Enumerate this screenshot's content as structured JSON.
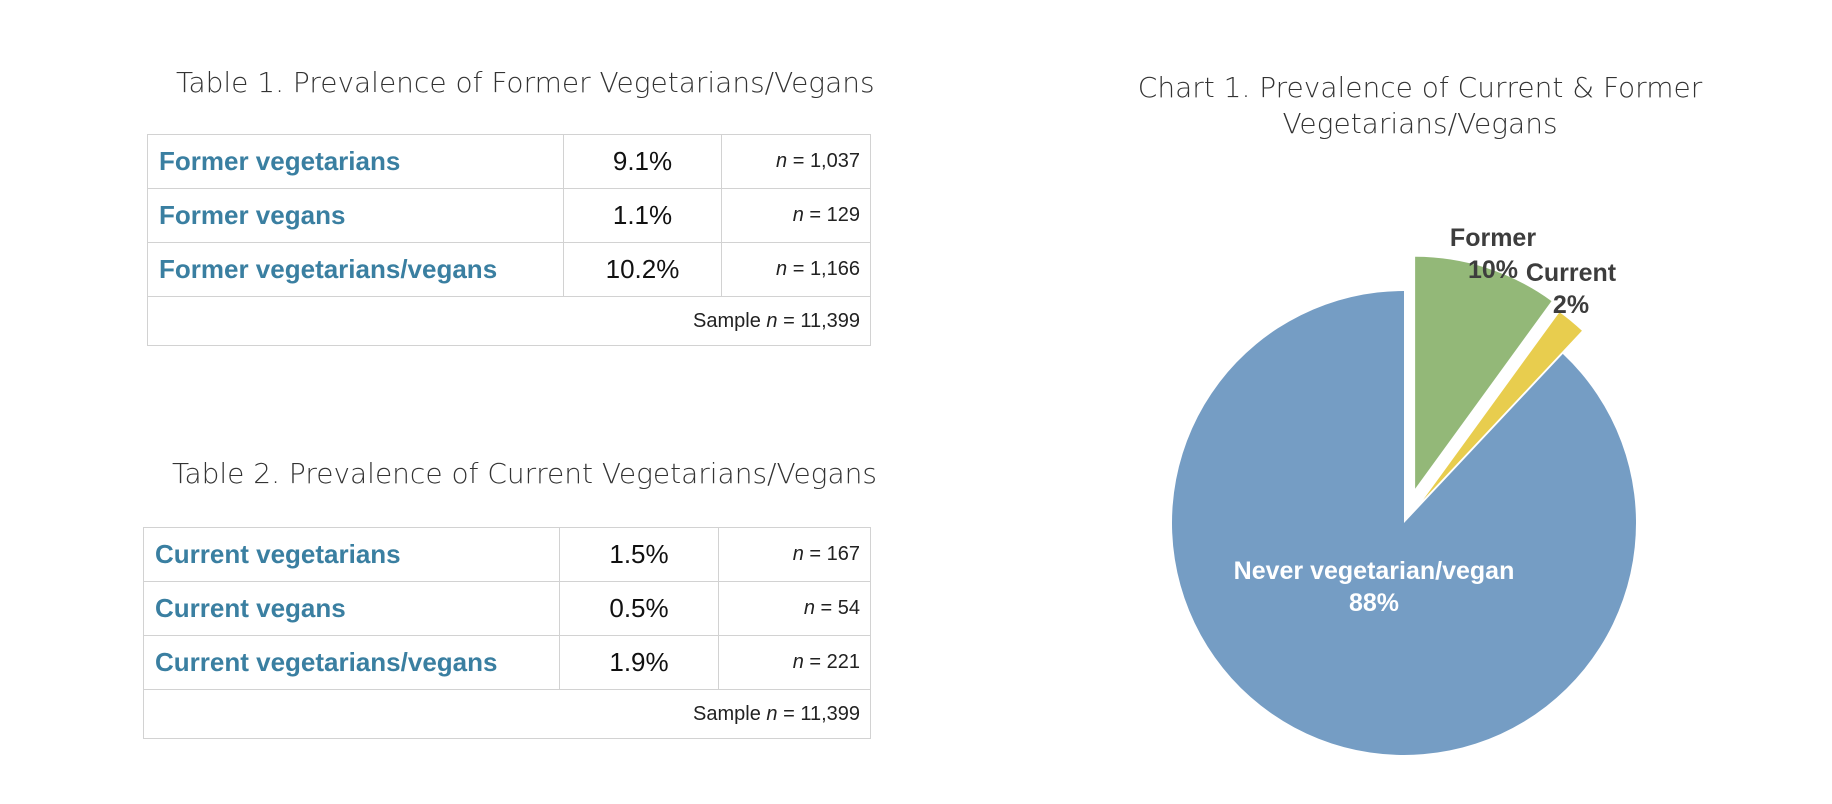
{
  "table1": {
    "title": "Table 1. Prevalence of Former Vegetarians/Vegans",
    "rows": [
      {
        "label": "Former vegetarians",
        "pct": "9.1%",
        "n": "1,037"
      },
      {
        "label": "Former vegans",
        "pct": "1.1%",
        "n": "129"
      },
      {
        "label": "Former vegetarians/vegans",
        "pct": "10.2%",
        "n": "1,166"
      }
    ],
    "sample_label": "Sample",
    "sample_n": "11,399"
  },
  "table2": {
    "title": "Table 2. Prevalence of Current Vegetarians/Vegans",
    "rows": [
      {
        "label": "Current vegetarians",
        "pct": "1.5%",
        "n": "167"
      },
      {
        "label": "Current vegans",
        "pct": "0.5%",
        "n": "54"
      },
      {
        "label": "Current vegetarians/vegans",
        "pct": "1.9%",
        "n": "221"
      }
    ],
    "sample_label": "Sample",
    "sample_n": "11,399"
  },
  "n_symbol": "n",
  "equals": "=",
  "chart_data": {
    "type": "pie",
    "title": "Chart 1. Prevalence of Current & Former Vegetarians/Vegans",
    "slices": [
      {
        "label": "Former",
        "value": 10,
        "display": "10%",
        "color": "#93b878",
        "exploded": true
      },
      {
        "label": "Current",
        "value": 2,
        "display": "2%",
        "color": "#e8cd4e",
        "exploded": true
      },
      {
        "label": "Never vegetarian/vegan",
        "value": 88,
        "display": "88%",
        "color": "#759dc4",
        "exploded": false
      }
    ],
    "label_colors": {
      "dark": "#3d3d3d",
      "light": "#ffffff"
    }
  }
}
